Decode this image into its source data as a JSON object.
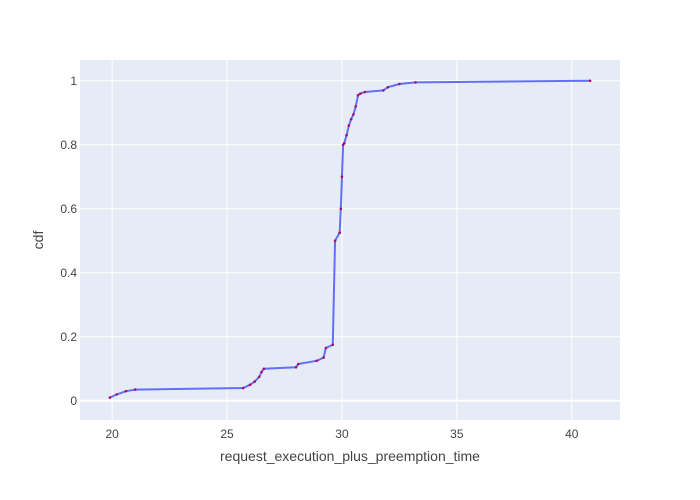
{
  "chart_data": {
    "type": "line",
    "title": "",
    "xlabel": "request_execution_plus_preemption_time",
    "ylabel": "cdf",
    "xlim": [
      18.6,
      42.1
    ],
    "ylim": [
      -0.06,
      1.065
    ],
    "x_ticks": [
      20,
      25,
      30,
      35,
      40
    ],
    "y_ticks": [
      0,
      0.2,
      0.4,
      0.6,
      0.8,
      1
    ],
    "x_tick_labels": [
      "20",
      "25",
      "30",
      "35",
      "40"
    ],
    "y_tick_labels": [
      "0",
      "0.2",
      "0.4",
      "0.6",
      "0.8",
      "1"
    ],
    "grid": true,
    "legend": "none",
    "colors": {
      "plot_bg": "#e5ecf6",
      "grid": "#ffffff",
      "line": "#636efa",
      "marker": "#ab0f60"
    },
    "series": [
      {
        "x": [
          19.9,
          20.2,
          20.6,
          21.0,
          25.7,
          26.0,
          26.2,
          26.4,
          26.5,
          26.6,
          28.0,
          28.1,
          28.9,
          29.2,
          29.3,
          29.6,
          29.7,
          29.9,
          29.95,
          30.0,
          30.05,
          30.1,
          30.2,
          30.3,
          30.4,
          30.5,
          30.6,
          30.7,
          30.8,
          31.0,
          31.8,
          32.0,
          32.5,
          33.2,
          40.8
        ],
        "y": [
          0.01,
          0.02,
          0.03,
          0.035,
          0.04,
          0.05,
          0.06,
          0.075,
          0.09,
          0.1,
          0.105,
          0.115,
          0.125,
          0.135,
          0.165,
          0.175,
          0.5,
          0.525,
          0.6,
          0.7,
          0.8,
          0.805,
          0.83,
          0.86,
          0.88,
          0.895,
          0.92,
          0.955,
          0.96,
          0.965,
          0.97,
          0.98,
          0.99,
          0.995,
          1.0
        ]
      }
    ]
  }
}
